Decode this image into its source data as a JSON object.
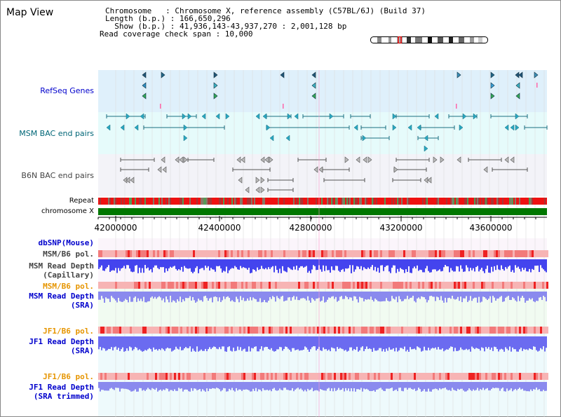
{
  "view_title": "Map View",
  "info": {
    "chromosome_line": "Chromosome   : Chromosome X, reference assembly (C57BL/6J) (Build 37)",
    "length_line": "Length (b.p.) : 166,650,296",
    "show_line": "  Show (b.p.) : 41,936,143-43,937,270 : 2,001,128 bp",
    "coverage_line": "Read coverage check span : 10,000"
  },
  "tracks": {
    "refseq_label": "RefSeq Genes",
    "msm_bac_label": "MSM BAC end pairs",
    "b6n_bac_label": "B6N BAC end pairs",
    "repeat_label": "Repeat",
    "chromosome_label": "chromosome X",
    "dbsnp_label": "dbSNP(Mouse)",
    "msm_b6_pol_label_1": "MSM/B6 pol.",
    "msm_depth_cap_label_1": "MSM Read Depth",
    "msm_depth_cap_label_2": "(Capillary)",
    "msm_b6_pol_label_2": "MSM/B6 pol.",
    "msm_depth_sra_label_1": "MSM Read Depth",
    "msm_depth_sra_label_2": "(SRA)",
    "jf1_b6_pol_label_1": "JF1/B6 pol.",
    "jf1_depth_sra_label_1": "JF1 Read Depth",
    "jf1_depth_sra_label_2": "(SRA)",
    "jf1_b6_pol_label_2": "JF1/B6 pol.",
    "jf1_depth_trim_label_1": "JF1 Read Depth",
    "jf1_depth_trim_label_2": "(SRA trimmed)"
  },
  "axis": {
    "ticks": [
      "42000000",
      "42400000",
      "42800000",
      "43200000",
      "43600000"
    ]
  },
  "colors": {
    "refseq_bg": "#dff0fb",
    "msm_bac_bg": "#e6fbfb",
    "b6n_bac_bg": "#f3f3f8",
    "chromosome_bar": "#007700",
    "repeat_red": "#ee1111",
    "depth_blue": "#4444ee",
    "depth_light": "#8888ee",
    "pol_pink": "#f4a0a0"
  }
}
